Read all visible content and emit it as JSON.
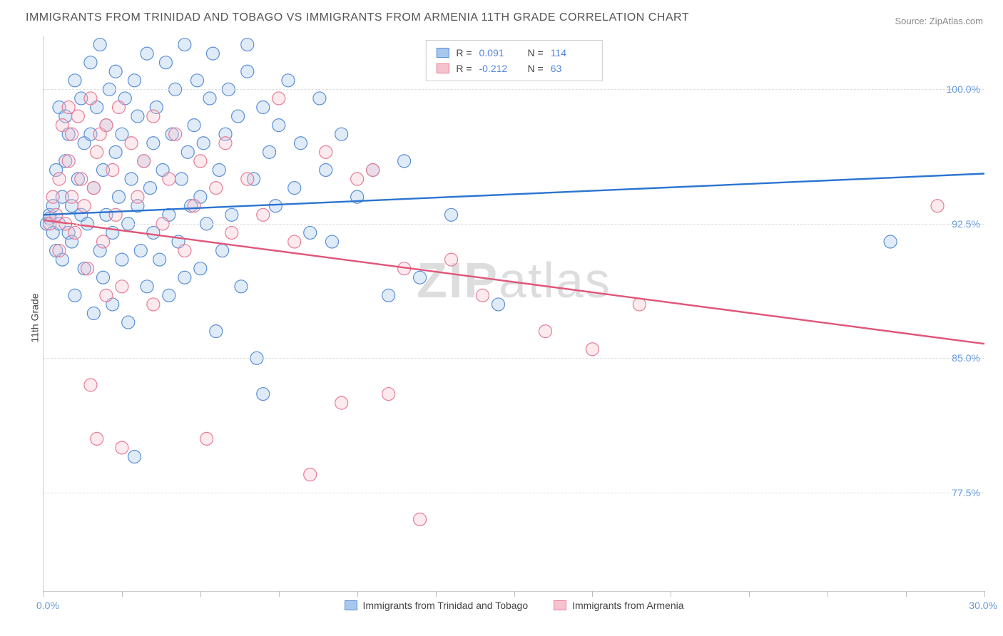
{
  "title": "IMMIGRANTS FROM TRINIDAD AND TOBAGO VS IMMIGRANTS FROM ARMENIA 11TH GRADE CORRELATION CHART",
  "source_label": "Source: ",
  "source_link_text": "ZipAtlas.com",
  "y_axis_label": "11th Grade",
  "watermark_zip": "ZIP",
  "watermark_atlas": "atlas",
  "chart": {
    "type": "scatter",
    "background_color": "#ffffff",
    "grid_color": "#dddddd",
    "axis_color": "#cccccc",
    "tick_label_color": "#6699dd",
    "title_fontsize": 16,
    "label_fontsize": 14,
    "xlim": [
      0,
      30
    ],
    "ylim": [
      72,
      103
    ],
    "x_min_label": "0.0%",
    "x_max_label": "30.0%",
    "x_ticks": [
      0,
      2.5,
      5,
      7.5,
      10,
      12.5,
      15,
      17.5,
      20,
      22.5,
      25,
      27.5,
      30
    ],
    "y_ticks": [
      {
        "value": 77.5,
        "label": "77.5%"
      },
      {
        "value": 85.0,
        "label": "85.0%"
      },
      {
        "value": 92.5,
        "label": "92.5%"
      },
      {
        "value": 100.0,
        "label": "100.0%"
      }
    ],
    "marker_radius": 9,
    "marker_stroke_width": 1.2,
    "marker_fill_opacity": 0.35,
    "line_width": 2.4,
    "series": [
      {
        "name": "Immigrants from Trinidad and Tobago",
        "color_fill": "#a7c7ec",
        "color_stroke": "#5a8fd6",
        "line_color": "#2b74d1",
        "r_label": "R =",
        "r_value": "0.091",
        "n_label": "N =",
        "n_value": "114",
        "trend": {
          "x1": 0,
          "y1": 93.0,
          "x2": 30,
          "y2": 95.3
        },
        "points": [
          [
            0.1,
            92.5
          ],
          [
            0.2,
            93.0
          ],
          [
            0.2,
            92.8
          ],
          [
            0.3,
            93.5
          ],
          [
            0.3,
            92.0
          ],
          [
            0.4,
            95.5
          ],
          [
            0.4,
            91.0
          ],
          [
            0.5,
            99.0
          ],
          [
            0.5,
            92.5
          ],
          [
            0.6,
            94.0
          ],
          [
            0.6,
            90.5
          ],
          [
            0.7,
            98.5
          ],
          [
            0.7,
            96.0
          ],
          [
            0.8,
            97.5
          ],
          [
            0.8,
            92.0
          ],
          [
            0.9,
            91.5
          ],
          [
            0.9,
            93.5
          ],
          [
            1.0,
            100.5
          ],
          [
            1.0,
            88.5
          ],
          [
            1.1,
            95.0
          ],
          [
            1.2,
            99.5
          ],
          [
            1.2,
            93.0
          ],
          [
            1.3,
            97.0
          ],
          [
            1.3,
            90.0
          ],
          [
            1.4,
            92.5
          ],
          [
            1.5,
            101.5
          ],
          [
            1.5,
            97.5
          ],
          [
            1.6,
            87.5
          ],
          [
            1.6,
            94.5
          ],
          [
            1.7,
            99.0
          ],
          [
            1.8,
            102.5
          ],
          [
            1.8,
            91.0
          ],
          [
            1.9,
            95.5
          ],
          [
            1.9,
            89.5
          ],
          [
            2.0,
            98.0
          ],
          [
            2.0,
            93.0
          ],
          [
            2.1,
            100.0
          ],
          [
            2.2,
            88.0
          ],
          [
            2.2,
            92.0
          ],
          [
            2.3,
            96.5
          ],
          [
            2.3,
            101.0
          ],
          [
            2.4,
            94.0
          ],
          [
            2.5,
            90.5
          ],
          [
            2.5,
            97.5
          ],
          [
            2.6,
            99.5
          ],
          [
            2.7,
            92.5
          ],
          [
            2.7,
            87.0
          ],
          [
            2.8,
            95.0
          ],
          [
            2.9,
            100.5
          ],
          [
            2.9,
            79.5
          ],
          [
            3.0,
            93.5
          ],
          [
            3.0,
            98.5
          ],
          [
            3.1,
            91.0
          ],
          [
            3.2,
            96.0
          ],
          [
            3.3,
            102.0
          ],
          [
            3.3,
            89.0
          ],
          [
            3.4,
            94.5
          ],
          [
            3.5,
            97.0
          ],
          [
            3.5,
            92.0
          ],
          [
            3.6,
            99.0
          ],
          [
            3.7,
            90.5
          ],
          [
            3.8,
            95.5
          ],
          [
            3.9,
            101.5
          ],
          [
            4.0,
            88.5
          ],
          [
            4.0,
            93.0
          ],
          [
            4.1,
            97.5
          ],
          [
            4.2,
            100.0
          ],
          [
            4.3,
            91.5
          ],
          [
            4.4,
            95.0
          ],
          [
            4.5,
            102.5
          ],
          [
            4.5,
            89.5
          ],
          [
            4.6,
            96.5
          ],
          [
            4.7,
            93.5
          ],
          [
            4.8,
            98.0
          ],
          [
            4.9,
            100.5
          ],
          [
            5.0,
            90.0
          ],
          [
            5.0,
            94.0
          ],
          [
            5.1,
            97.0
          ],
          [
            5.2,
            92.5
          ],
          [
            5.3,
            99.5
          ],
          [
            5.4,
            102.0
          ],
          [
            5.5,
            86.5
          ],
          [
            5.6,
            95.5
          ],
          [
            5.7,
            91.0
          ],
          [
            5.8,
            97.5
          ],
          [
            5.9,
            100.0
          ],
          [
            6.0,
            93.0
          ],
          [
            6.2,
            98.5
          ],
          [
            6.3,
            89.0
          ],
          [
            6.5,
            101.0
          ],
          [
            6.5,
            102.5
          ],
          [
            6.7,
            95.0
          ],
          [
            6.8,
            85.0
          ],
          [
            7.0,
            99.0
          ],
          [
            7.0,
            83.0
          ],
          [
            7.2,
            96.5
          ],
          [
            7.4,
            93.5
          ],
          [
            7.5,
            98.0
          ],
          [
            7.8,
            100.5
          ],
          [
            8.0,
            94.5
          ],
          [
            8.2,
            97.0
          ],
          [
            8.5,
            92.0
          ],
          [
            8.8,
            99.5
          ],
          [
            9.0,
            95.5
          ],
          [
            9.2,
            91.5
          ],
          [
            9.5,
            97.5
          ],
          [
            10.0,
            94.0
          ],
          [
            10.5,
            95.5
          ],
          [
            11.0,
            88.5
          ],
          [
            11.5,
            96.0
          ],
          [
            12.0,
            89.5
          ],
          [
            13.0,
            93.0
          ],
          [
            14.5,
            88.0
          ],
          [
            27.0,
            91.5
          ]
        ]
      },
      {
        "name": "Immigrants from Armenia",
        "color_fill": "#f5c2cd",
        "color_stroke": "#e77d96",
        "line_color": "#e05578",
        "r_label": "R =",
        "r_value": "-0.212",
        "n_label": "N =",
        "n_value": "63",
        "trend": {
          "x1": 0,
          "y1": 92.7,
          "x2": 30,
          "y2": 85.8
        },
        "points": [
          [
            0.2,
            92.5
          ],
          [
            0.3,
            94.0
          ],
          [
            0.4,
            93.0
          ],
          [
            0.5,
            95.0
          ],
          [
            0.5,
            91.0
          ],
          [
            0.6,
            98.0
          ],
          [
            0.7,
            92.5
          ],
          [
            0.8,
            96.0
          ],
          [
            0.8,
            99.0
          ],
          [
            0.9,
            97.5
          ],
          [
            0.9,
            94.0
          ],
          [
            1.0,
            92.0
          ],
          [
            1.1,
            98.5
          ],
          [
            1.2,
            95.0
          ],
          [
            1.3,
            93.5
          ],
          [
            1.4,
            90.0
          ],
          [
            1.5,
            99.5
          ],
          [
            1.5,
            83.5
          ],
          [
            1.6,
            94.5
          ],
          [
            1.7,
            96.5
          ],
          [
            1.7,
            80.5
          ],
          [
            1.8,
            97.5
          ],
          [
            1.9,
            91.5
          ],
          [
            2.0,
            98.0
          ],
          [
            2.0,
            88.5
          ],
          [
            2.2,
            95.5
          ],
          [
            2.3,
            93.0
          ],
          [
            2.4,
            99.0
          ],
          [
            2.5,
            89.0
          ],
          [
            2.5,
            80.0
          ],
          [
            2.8,
            97.0
          ],
          [
            3.0,
            94.0
          ],
          [
            3.2,
            96.0
          ],
          [
            3.5,
            98.5
          ],
          [
            3.5,
            88.0
          ],
          [
            3.8,
            92.5
          ],
          [
            4.0,
            95.0
          ],
          [
            4.2,
            97.5
          ],
          [
            4.5,
            91.0
          ],
          [
            4.8,
            93.5
          ],
          [
            5.0,
            96.0
          ],
          [
            5.2,
            80.5
          ],
          [
            5.5,
            94.5
          ],
          [
            5.8,
            97.0
          ],
          [
            6.0,
            92.0
          ],
          [
            6.5,
            95.0
          ],
          [
            7.0,
            93.0
          ],
          [
            7.5,
            99.5
          ],
          [
            8.0,
            91.5
          ],
          [
            8.5,
            78.5
          ],
          [
            9.0,
            96.5
          ],
          [
            9.5,
            82.5
          ],
          [
            10.0,
            95.0
          ],
          [
            10.5,
            95.5
          ],
          [
            11.0,
            83.0
          ],
          [
            11.5,
            90.0
          ],
          [
            12.0,
            76.0
          ],
          [
            13.0,
            90.5
          ],
          [
            14.0,
            88.5
          ],
          [
            16.0,
            86.5
          ],
          [
            17.5,
            85.5
          ],
          [
            19.0,
            88.0
          ],
          [
            28.5,
            93.5
          ]
        ]
      }
    ]
  },
  "bottom_legend": [
    {
      "label": "Immigrants from Trinidad and Tobago",
      "fill": "#a7c7ec",
      "stroke": "#5a8fd6"
    },
    {
      "label": "Immigrants from Armenia",
      "fill": "#f5c2cd",
      "stroke": "#e77d96"
    }
  ]
}
